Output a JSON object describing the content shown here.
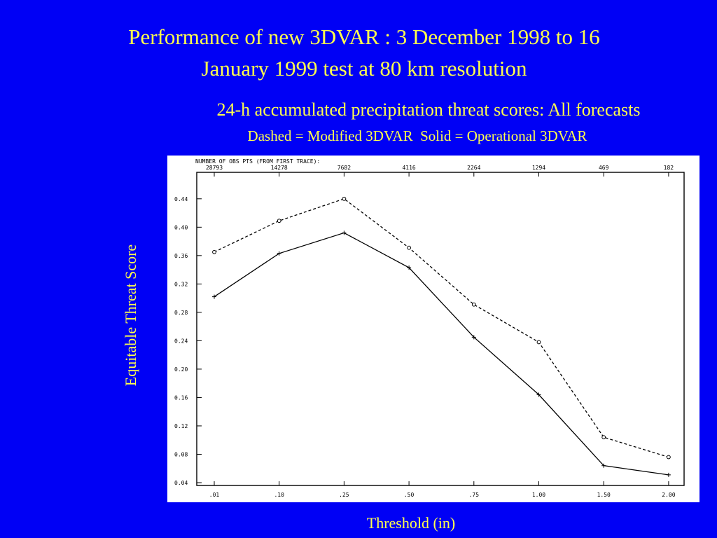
{
  "slide": {
    "title_line1": "Performance of new 3DVAR : 3 December 1998 to 16",
    "title_line2": "January 1999 test at 80 km resolution",
    "subtitle": "24-h accumulated precipitation threat scores: All forecasts",
    "legend_note": "Dashed = Modified 3DVAR  Solid = Operational 3DVAR",
    "y_axis_label": "Equitable Threat Score",
    "x_axis_label": "Threshold (in)",
    "background_color": "#0000f5",
    "text_color": "#ffff4d"
  },
  "chart_data": {
    "type": "line",
    "categories": [
      ".01",
      ".10",
      ".25",
      ".50",
      ".75",
      "1.00",
      "1.50",
      "2.00"
    ],
    "ytick_labels": [
      "0.04",
      "0.08",
      "0.12",
      "0.16",
      "0.20",
      "0.24",
      "0.28",
      "0.32",
      "0.36",
      "0.40",
      "0.44"
    ],
    "ylim": [
      0.04,
      0.44
    ],
    "obs_header": "NUMBER OF OBS PTS (FROM FIRST TRACE):",
    "obs_counts": [
      "28793",
      "14278",
      "7682",
      "4116",
      "2264",
      "1294",
      "469",
      "182"
    ],
    "series": [
      {
        "name": "Modified 3DVAR",
        "style": "dashed",
        "marker": "circle",
        "values": [
          0.365,
          0.409,
          0.44,
          0.371,
          0.291,
          0.238,
          0.104,
          0.076
        ]
      },
      {
        "name": "Operational 3DVAR",
        "style": "solid",
        "marker": "plus",
        "values": [
          0.302,
          0.363,
          0.392,
          0.343,
          0.245,
          0.164,
          0.064,
          0.051
        ]
      }
    ],
    "grid": false
  }
}
